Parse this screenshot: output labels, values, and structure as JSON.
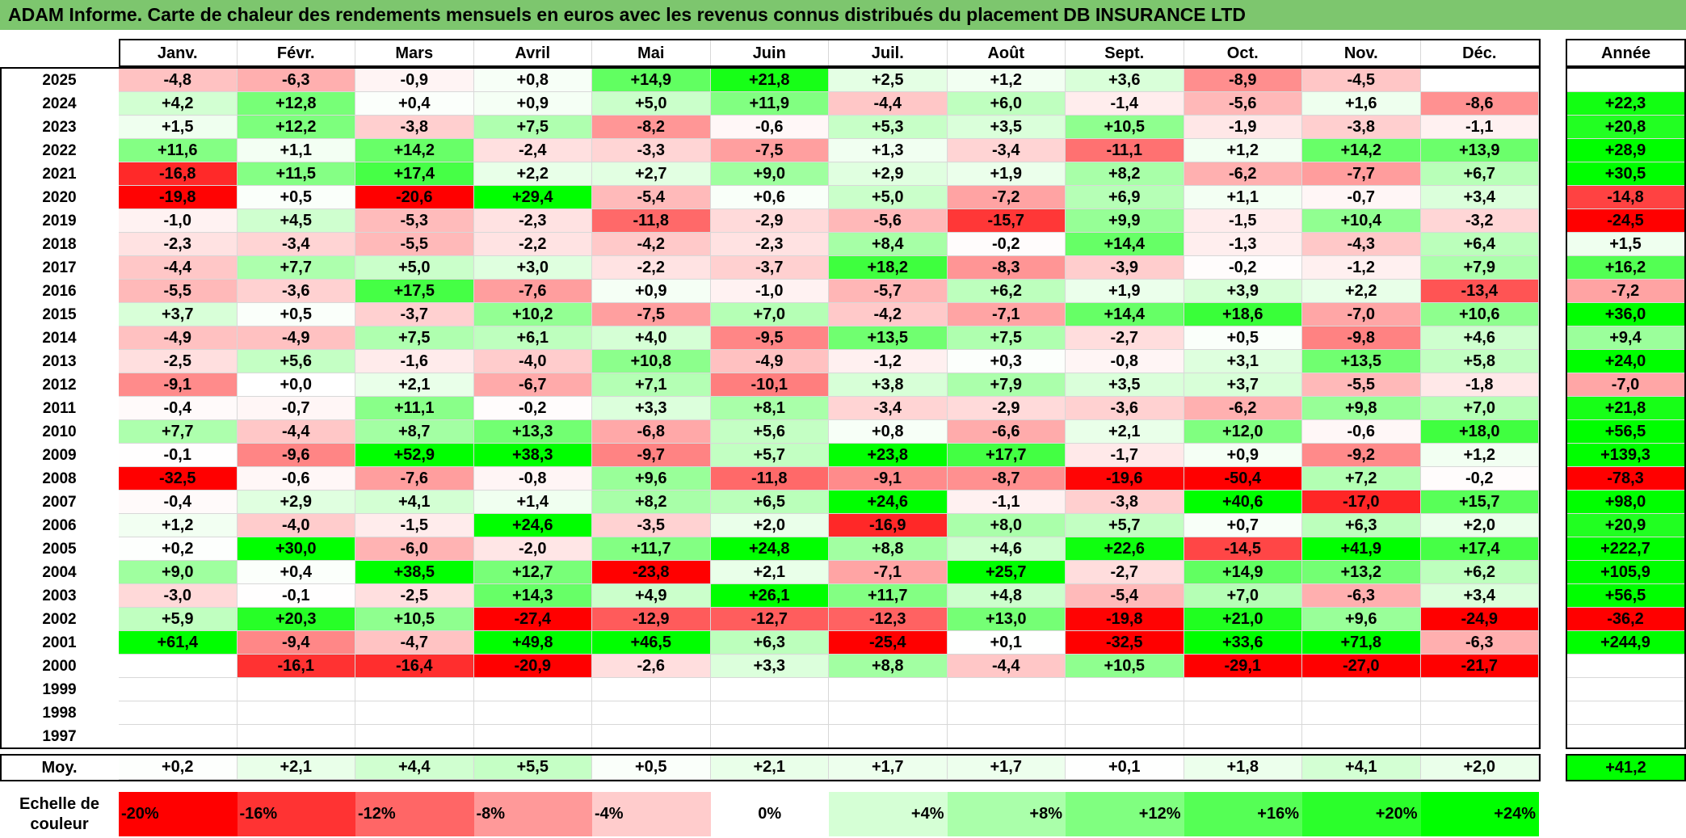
{
  "title": "ADAM Informe. Carte de chaleur des rendements mensuels en euros avec les revenus connus distribués du placement DB INSURANCE LTD",
  "chart_data": {
    "type": "heatmap",
    "months": [
      "Janv.",
      "Févr.",
      "Mars",
      "Avril",
      "Mai",
      "Juin",
      "Juil.",
      "Août",
      "Sept.",
      "Oct.",
      "Nov.",
      "Déc."
    ],
    "year_header": "Année",
    "rows": [
      {
        "year": "2025",
        "values": [
          "-4,8",
          "-6,3",
          "-0,9",
          "+0,8",
          "+14,9",
          "+21,8",
          "+2,5",
          "+1,2",
          "+3,6",
          "-8,9",
          "-4,5",
          ""
        ],
        "annual": ""
      },
      {
        "year": "2024",
        "values": [
          "+4,2",
          "+12,8",
          "+0,4",
          "+0,9",
          "+5,0",
          "+11,9",
          "-4,4",
          "+6,0",
          "-1,4",
          "-5,6",
          "+1,6",
          "-8,6"
        ],
        "annual": "+22,3"
      },
      {
        "year": "2023",
        "values": [
          "+1,5",
          "+12,2",
          "-3,8",
          "+7,5",
          "-8,2",
          "-0,6",
          "+5,3",
          "+3,5",
          "+10,5",
          "-1,9",
          "-3,8",
          "-1,1"
        ],
        "annual": "+20,8"
      },
      {
        "year": "2022",
        "values": [
          "+11,6",
          "+1,1",
          "+14,2",
          "-2,4",
          "-3,3",
          "-7,5",
          "+1,3",
          "-3,4",
          "-11,1",
          "+1,2",
          "+14,2",
          "+13,9"
        ],
        "annual": "+28,9"
      },
      {
        "year": "2021",
        "values": [
          "-16,8",
          "+11,5",
          "+17,4",
          "+2,2",
          "+2,7",
          "+9,0",
          "+2,9",
          "+1,9",
          "+8,2",
          "-6,2",
          "-7,7",
          "+6,7"
        ],
        "annual": "+30,5"
      },
      {
        "year": "2020",
        "values": [
          "-19,8",
          "+0,5",
          "-20,6",
          "+29,4",
          "-5,4",
          "+0,6",
          "+5,0",
          "-7,2",
          "+6,9",
          "+1,1",
          "-0,7",
          "+3,4"
        ],
        "annual": "-14,8"
      },
      {
        "year": "2019",
        "values": [
          "-1,0",
          "+4,5",
          "-5,3",
          "-2,3",
          "-11,8",
          "-2,9",
          "-5,6",
          "-15,7",
          "+9,9",
          "-1,5",
          "+10,4",
          "-3,2"
        ],
        "annual": "-24,5"
      },
      {
        "year": "2018",
        "values": [
          "-2,3",
          "-3,4",
          "-5,5",
          "-2,2",
          "-4,2",
          "-2,3",
          "+8,4",
          "-0,2",
          "+14,4",
          "-1,3",
          "-4,3",
          "+6,4"
        ],
        "annual": "+1,5"
      },
      {
        "year": "2017",
        "values": [
          "-4,4",
          "+7,7",
          "+5,0",
          "+3,0",
          "-2,2",
          "-3,7",
          "+18,2",
          "-8,3",
          "-3,9",
          "-0,2",
          "-1,2",
          "+7,9"
        ],
        "annual": "+16,2"
      },
      {
        "year": "2016",
        "values": [
          "-5,5",
          "-3,6",
          "+17,5",
          "-7,6",
          "+0,9",
          "-1,0",
          "-5,7",
          "+6,2",
          "+1,9",
          "+3,9",
          "+2,2",
          "-13,4"
        ],
        "annual": "-7,2"
      },
      {
        "year": "2015",
        "values": [
          "+3,7",
          "+0,5",
          "-3,7",
          "+10,2",
          "-7,5",
          "+7,0",
          "-4,2",
          "-7,1",
          "+14,4",
          "+18,6",
          "-7,0",
          "+10,6"
        ],
        "annual": "+36,0"
      },
      {
        "year": "2014",
        "values": [
          "-4,9",
          "-4,9",
          "+7,5",
          "+6,1",
          "+4,0",
          "-9,5",
          "+13,5",
          "+7,5",
          "-2,7",
          "+0,5",
          "-9,8",
          "+4,6"
        ],
        "annual": "+9,4"
      },
      {
        "year": "2013",
        "values": [
          "-2,5",
          "+5,6",
          "-1,6",
          "-4,0",
          "+10,8",
          "-4,9",
          "-1,2",
          "+0,3",
          "-0,8",
          "+3,1",
          "+13,5",
          "+5,8"
        ],
        "annual": "+24,0"
      },
      {
        "year": "2012",
        "values": [
          "-9,1",
          "+0,0",
          "+2,1",
          "-6,7",
          "+7,1",
          "-10,1",
          "+3,8",
          "+7,9",
          "+3,5",
          "+3,7",
          "-5,5",
          "-1,8"
        ],
        "annual": "-7,0"
      },
      {
        "year": "2011",
        "values": [
          "-0,4",
          "-0,7",
          "+11,1",
          "-0,2",
          "+3,3",
          "+8,1",
          "-3,4",
          "-2,9",
          "-3,6",
          "-6,2",
          "+9,8",
          "+7,0"
        ],
        "annual": "+21,8"
      },
      {
        "year": "2010",
        "values": [
          "+7,7",
          "-4,4",
          "+8,7",
          "+13,3",
          "-6,8",
          "+5,6",
          "+0,8",
          "-6,6",
          "+2,1",
          "+12,0",
          "-0,6",
          "+18,0"
        ],
        "annual": "+56,5"
      },
      {
        "year": "2009",
        "values": [
          "-0,1",
          "-9,6",
          "+52,9",
          "+38,3",
          "-9,7",
          "+5,7",
          "+23,8",
          "+17,7",
          "-1,7",
          "+0,9",
          "-9,2",
          "+1,2"
        ],
        "annual": "+139,3"
      },
      {
        "year": "2008",
        "values": [
          "-32,5",
          "-0,6",
          "-7,6",
          "-0,8",
          "+9,6",
          "-11,8",
          "-9,1",
          "-8,7",
          "-19,6",
          "-50,4",
          "+7,2",
          "-0,2"
        ],
        "annual": "-78,3"
      },
      {
        "year": "2007",
        "values": [
          "-0,4",
          "+2,9",
          "+4,1",
          "+1,4",
          "+8,2",
          "+6,5",
          "+24,6",
          "-1,1",
          "-3,8",
          "+40,6",
          "-17,0",
          "+15,7"
        ],
        "annual": "+98,0"
      },
      {
        "year": "2006",
        "values": [
          "+1,2",
          "-4,0",
          "-1,5",
          "+24,6",
          "-3,5",
          "+2,0",
          "-16,9",
          "+8,0",
          "+5,7",
          "+0,7",
          "+6,3",
          "+2,0"
        ],
        "annual": "+20,9"
      },
      {
        "year": "2005",
        "values": [
          "+0,2",
          "+30,0",
          "-6,0",
          "-2,0",
          "+11,7",
          "+24,8",
          "+8,8",
          "+4,6",
          "+22,6",
          "-14,5",
          "+41,9",
          "+17,4"
        ],
        "annual": "+222,7"
      },
      {
        "year": "2004",
        "values": [
          "+9,0",
          "+0,4",
          "+38,5",
          "+12,7",
          "-23,8",
          "+2,1",
          "-7,1",
          "+25,7",
          "-2,7",
          "+14,9",
          "+13,2",
          "+6,2"
        ],
        "annual": "+105,9"
      },
      {
        "year": "2003",
        "values": [
          "-3,0",
          "-0,1",
          "-2,5",
          "+14,3",
          "+4,9",
          "+26,1",
          "+11,7",
          "+4,8",
          "-5,4",
          "+7,0",
          "-6,3",
          "+3,4"
        ],
        "annual": "+56,5"
      },
      {
        "year": "2002",
        "values": [
          "+5,9",
          "+20,3",
          "+10,5",
          "-27,4",
          "-12,9",
          "-12,7",
          "-12,3",
          "+13,0",
          "-19,8",
          "+21,0",
          "+9,6",
          "-24,9"
        ],
        "annual": "-36,2"
      },
      {
        "year": "2001",
        "values": [
          "+61,4",
          "-9,4",
          "-4,7",
          "+49,8",
          "+46,5",
          "+6,3",
          "-25,4",
          "+0,1",
          "-32,5",
          "+33,6",
          "+71,8",
          "-6,3"
        ],
        "annual": "+244,9"
      },
      {
        "year": "2000",
        "values": [
          "",
          "-16,1",
          "-16,4",
          "-20,9",
          "-2,6",
          "+3,3",
          "+8,8",
          "-4,4",
          "+10,5",
          "-29,1",
          "-27,0",
          "-21,7"
        ],
        "annual": ""
      },
      {
        "year": "1999",
        "values": [
          "",
          "",
          "",
          "",
          "",
          "",
          "",
          "",
          "",
          "",
          "",
          ""
        ],
        "annual": ""
      },
      {
        "year": "1998",
        "values": [
          "",
          "",
          "",
          "",
          "",
          "",
          "",
          "",
          "",
          "",
          "",
          ""
        ],
        "annual": ""
      },
      {
        "year": "1997",
        "values": [
          "",
          "",
          "",
          "",
          "",
          "",
          "",
          "",
          "",
          "",
          "",
          ""
        ],
        "annual": ""
      }
    ],
    "average": {
      "label": "Moy.",
      "values": [
        "+0,2",
        "+2,1",
        "+4,4",
        "+5,5",
        "+0,5",
        "+2,1",
        "+1,7",
        "+1,7",
        "+0,1",
        "+1,8",
        "+4,1",
        "+2,0"
      ],
      "annual": "+41,2"
    },
    "scale": {
      "label_line1": "Echelle de",
      "label_line2": "couleur",
      "steps": [
        {
          "label": "-20%",
          "value": -20
        },
        {
          "label": "-16%",
          "value": -16
        },
        {
          "label": "-12%",
          "value": -12
        },
        {
          "label": "-8%",
          "value": -8
        },
        {
          "label": "-4%",
          "value": -4
        },
        {
          "label": "0%",
          "value": 0
        },
        {
          "label": "+4%",
          "value": 4
        },
        {
          "label": "+8%",
          "value": 8
        },
        {
          "label": "+12%",
          "value": 12
        },
        {
          "label": "+16%",
          "value": 16
        },
        {
          "label": "+20%",
          "value": 20
        },
        {
          "label": "+24%",
          "value": 24
        }
      ]
    },
    "colors": {
      "negative": "#ff0000",
      "neutral": "#ffffff",
      "positive": "#00ff00"
    },
    "color_scale_min": -20,
    "color_scale_max": 24
  }
}
